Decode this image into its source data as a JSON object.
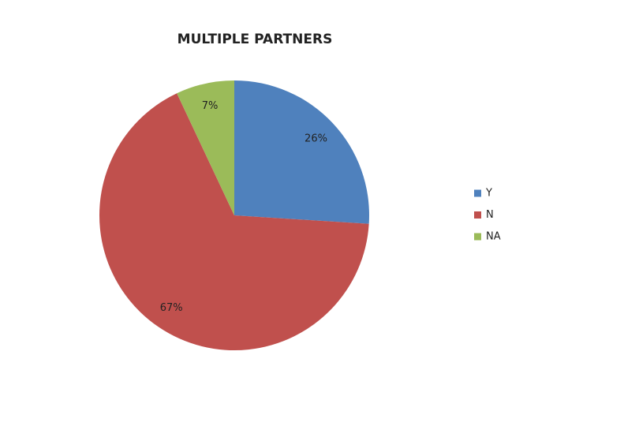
{
  "chart_data": {
    "type": "pie",
    "title": "MULTIPLE PARTNERS",
    "categories": [
      "Y",
      "N",
      "NA"
    ],
    "values": [
      26,
      67,
      7
    ],
    "value_labels": [
      "26%",
      "67%",
      "7%"
    ],
    "colors": [
      "#4f81bd",
      "#c0504d",
      "#9bbb59"
    ],
    "legend": "right"
  }
}
